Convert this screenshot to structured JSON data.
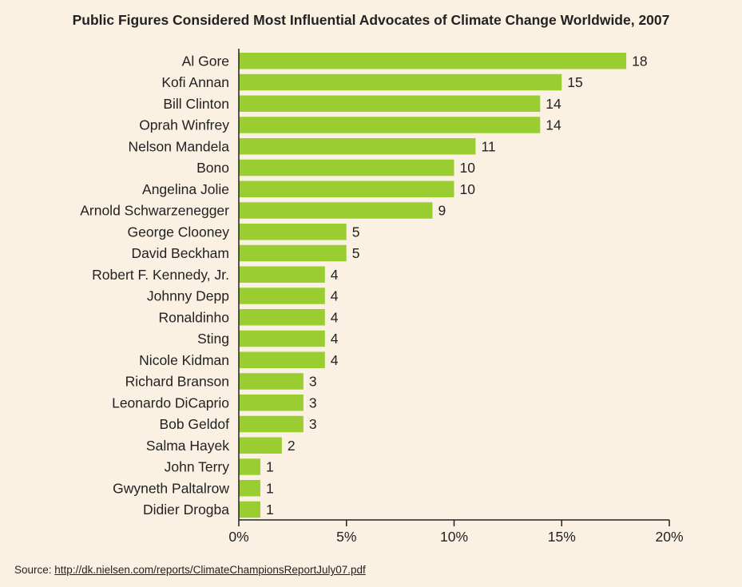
{
  "chart_data": {
    "type": "bar",
    "orientation": "horizontal",
    "title": "Public Figures Considered Most Influential Advocates of Climate Change Worldwide, 2007",
    "categories": [
      "Al Gore",
      "Kofi Annan",
      "Bill Clinton",
      "Oprah Winfrey",
      "Nelson Mandela",
      "Bono",
      "Angelina Jolie",
      "Arnold Schwarzenegger",
      "George Clooney",
      "David Beckham",
      "Robert F. Kennedy, Jr.",
      "Johnny Depp",
      "Ronaldinho",
      "Sting",
      "Nicole Kidman",
      "Richard Branson",
      "Leonardo DiCaprio",
      "Bob Geldof",
      "Salma Hayek",
      "John Terry",
      "Gwyneth Paltalrow",
      "Didier Drogba"
    ],
    "values": [
      18,
      15,
      14,
      14,
      11,
      10,
      10,
      9,
      5,
      5,
      4,
      4,
      4,
      4,
      4,
      3,
      3,
      3,
      2,
      1,
      1,
      1
    ],
    "data_labels": [
      "18",
      "15",
      "14",
      "14",
      "11",
      "10",
      "10",
      "9",
      "5",
      "5",
      "4",
      "4",
      "4",
      "4",
      "4",
      "3",
      "3",
      "3",
      "2",
      "1",
      "1",
      "1"
    ],
    "xlim": [
      0,
      20
    ],
    "xticks": [
      0,
      5,
      10,
      15,
      20
    ],
    "xtick_labels": [
      "0%",
      "5%",
      "10%",
      "15%",
      "20%"
    ],
    "xlabel": "",
    "ylabel": "",
    "grid": false,
    "bar_color": "#9acd32"
  },
  "source": {
    "label": "Source:",
    "link_text": "http://dk.nielsen.com/reports/ClimateChampionsReportJuly07.pdf"
  }
}
